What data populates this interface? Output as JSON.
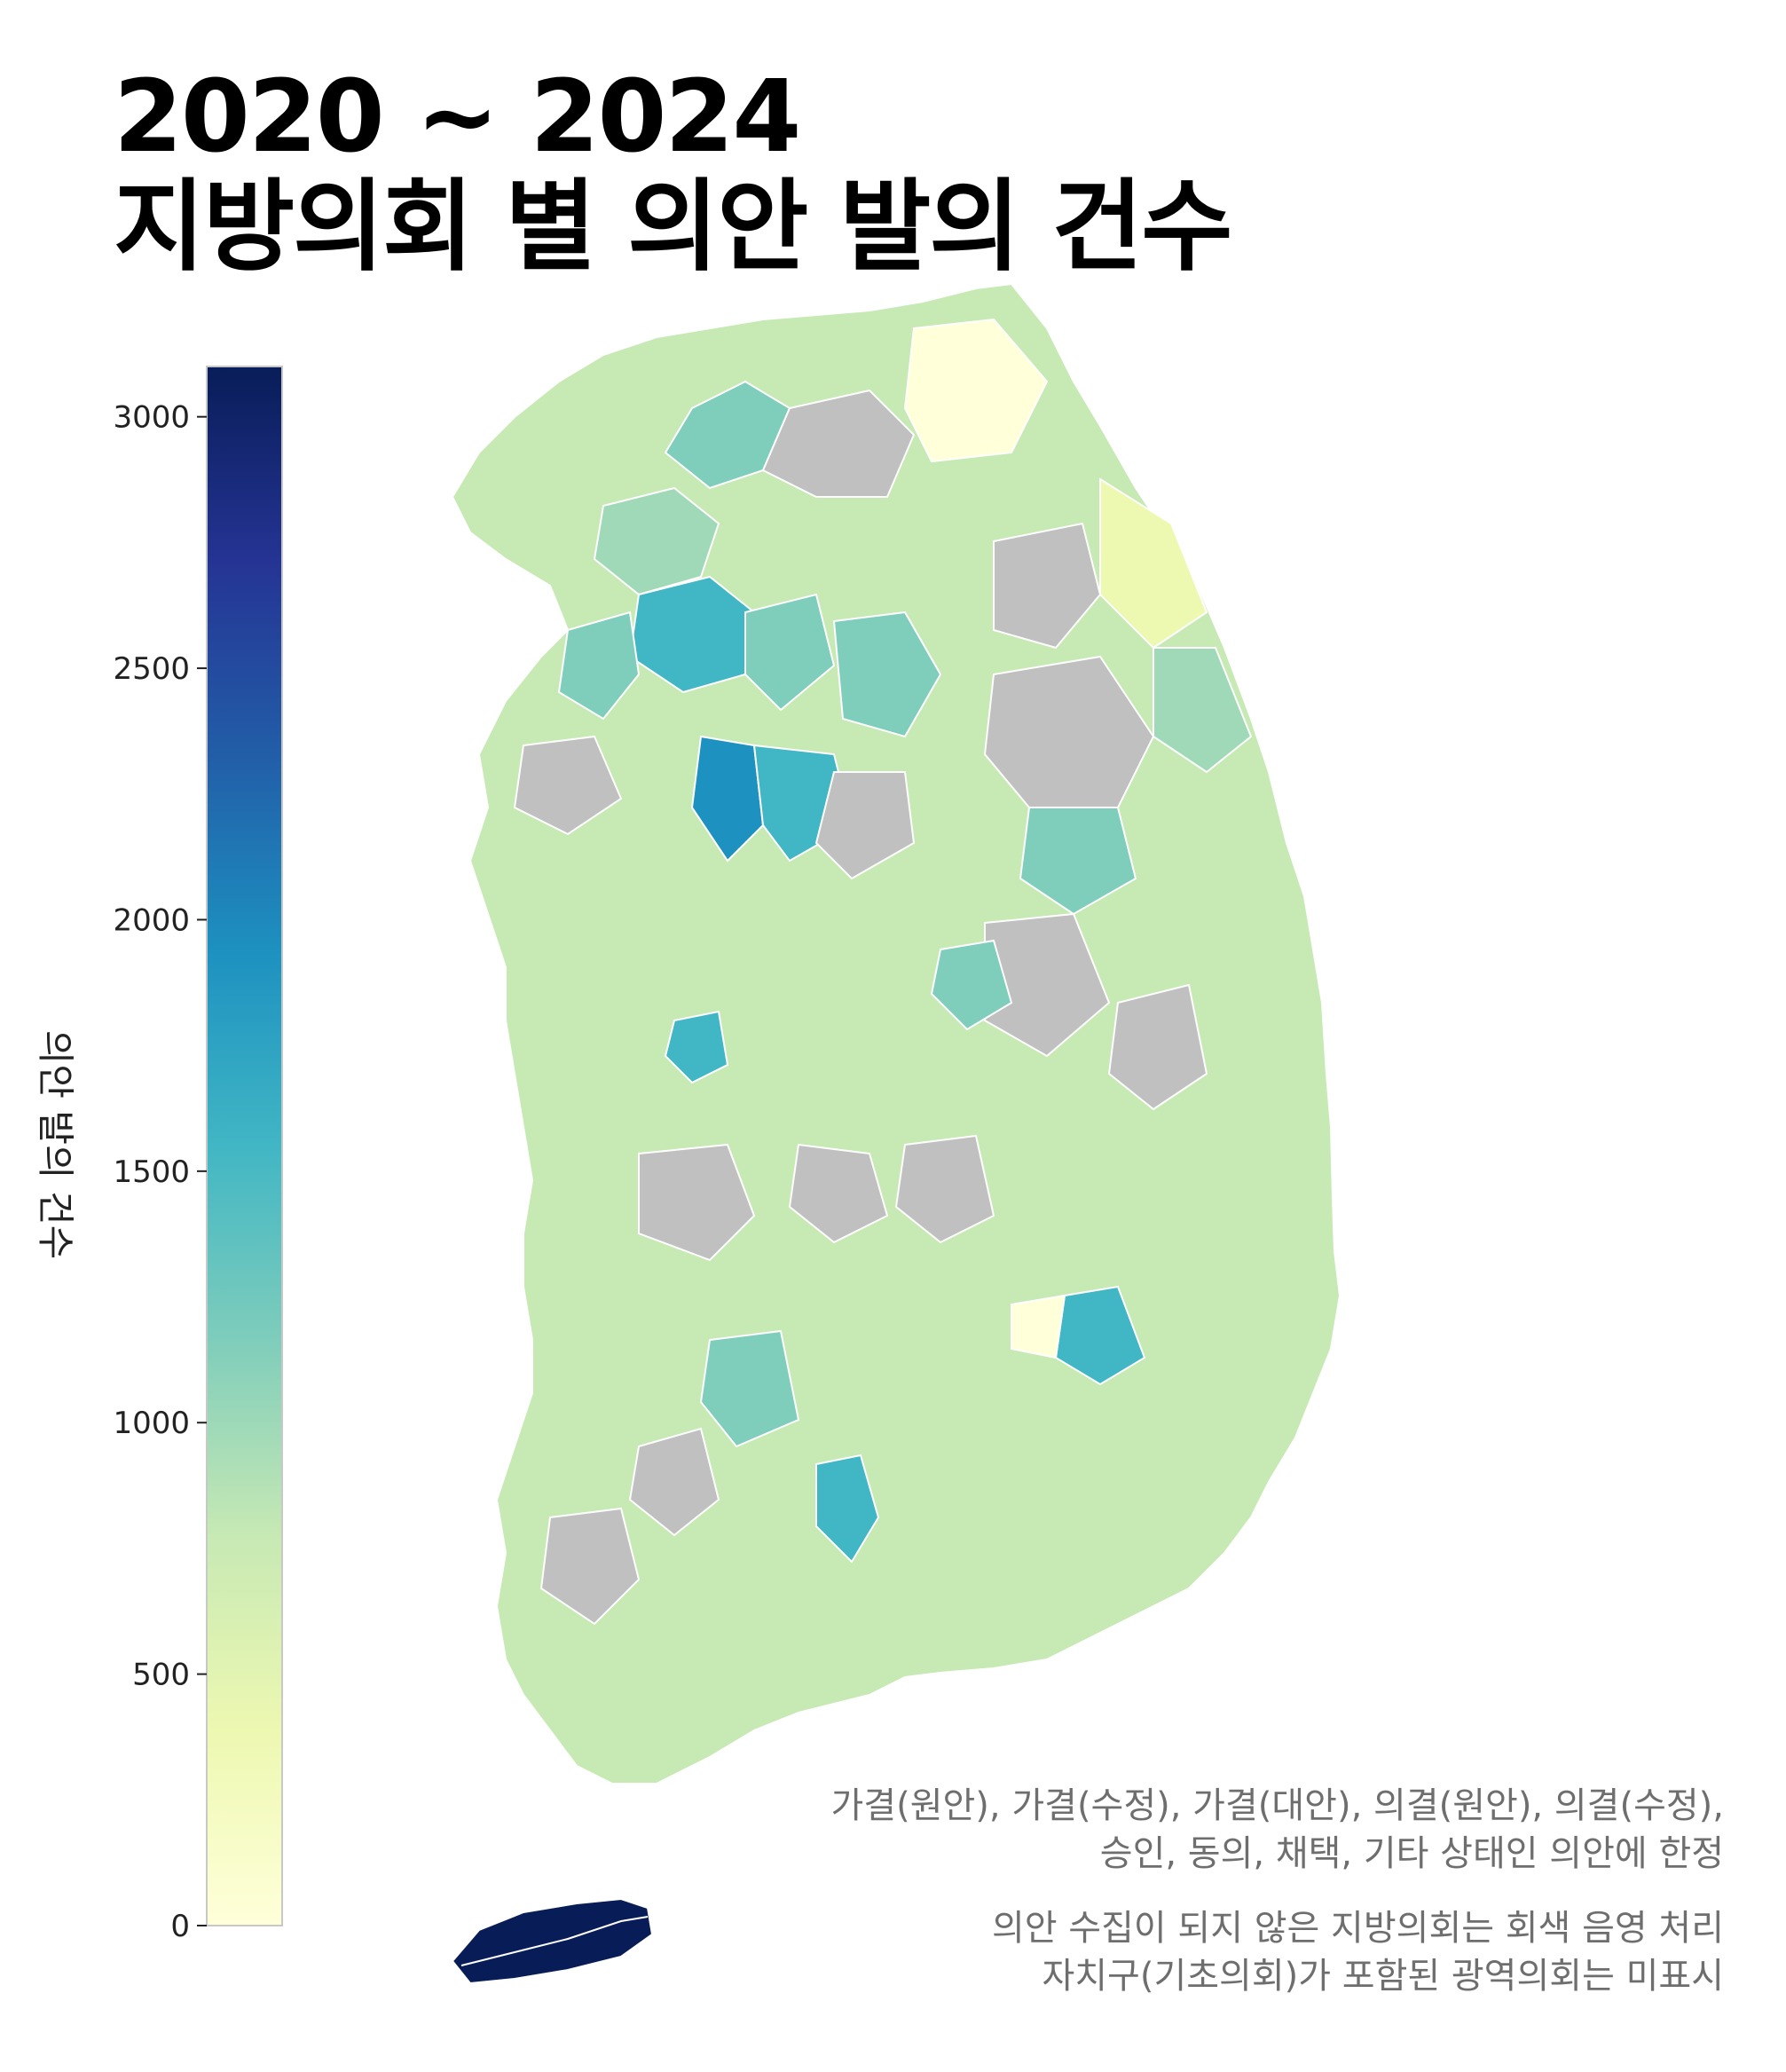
{
  "title": {
    "line1": "2020 ~ 2024",
    "line2": "지방의회 별 의안 발의 건수"
  },
  "colorbar": {
    "label": "의안 발의 건수",
    "min": 0,
    "max": 3100,
    "ticks": [
      0,
      500,
      1000,
      1500,
      2000,
      2500,
      3000
    ],
    "tick_labels": [
      "0",
      "500",
      "1000",
      "1500",
      "2000",
      "2500",
      "3000"
    ],
    "colorscale": [
      "#ffffd9",
      "#edf8b1",
      "#c7e9b4",
      "#7fcdbb",
      "#41b6c4",
      "#1d91c0",
      "#225ea8",
      "#253494",
      "#081d58"
    ]
  },
  "map": {
    "no_data_color": "#c0c0c0",
    "border_color": "#ffffff",
    "regions": [
      {
        "id": "jeju",
        "value": 3000
      },
      {
        "id": "sejong-cheongju",
        "value": 2100
      },
      {
        "id": "gyeonggi-south",
        "value": 1850
      },
      {
        "id": "gangwon-mid",
        "value": 1300
      },
      {
        "id": "changwon",
        "value": 1450
      },
      {
        "id": "yeosu",
        "value": 1500
      },
      {
        "id": "jeonbuk-west",
        "value": 900
      },
      {
        "id": "jeonbuk-east",
        "value": 600
      },
      {
        "id": "gyeongbuk-north",
        "value": 800
      },
      {
        "id": "gangwon-coast",
        "value": 400
      }
    ]
  },
  "notes": [
    "가결(원안), 가결(수정), 가결(대안), 의결(원안), 의결(수정),",
    "승인, 동의, 채택, 기타 상태인 의안에 한정",
    "의안 수집이 되지 않은 지방의회는 회색 음영 처리",
    "자치구(기초의회)가 포함된 광역의회는 미표시"
  ]
}
